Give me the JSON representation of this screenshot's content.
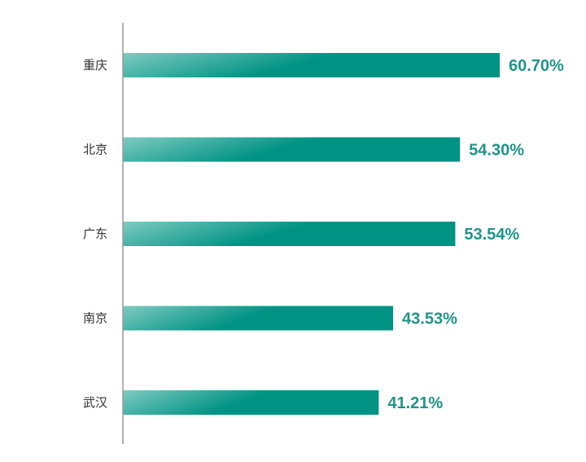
{
  "chart_data": {
    "type": "bar",
    "orientation": "horizontal",
    "categories": [
      "重庆",
      "北京",
      "广东",
      "南京",
      "武汉"
    ],
    "values": [
      60.7,
      54.3,
      53.54,
      43.53,
      41.21
    ],
    "value_labels": [
      "60.70%",
      "54.30%",
      "53.54%",
      "43.53%",
      "41.21%"
    ],
    "unit": "%",
    "xlim": [
      0,
      100
    ],
    "grid": false,
    "legend": "none",
    "colors": {
      "bar_start": "#7fcbc2",
      "bar_end": "#009384",
      "label": "#1f9488",
      "axis": "#999999",
      "text": "#333333"
    }
  }
}
